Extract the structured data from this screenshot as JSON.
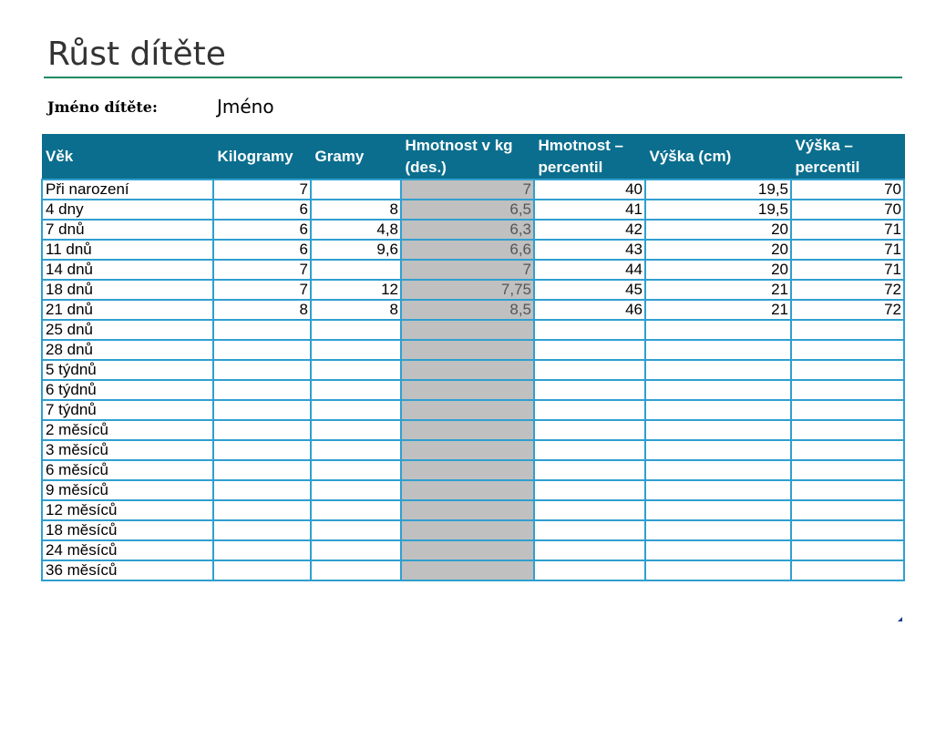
{
  "title": "Růst dítěte",
  "child": {
    "label": "Jméno dítěte:",
    "value": "Jméno"
  },
  "table": {
    "headers": [
      "Věk",
      "Kilogramy",
      "Gramy",
      "Hmotnost v kg (des.)",
      "Hmotnost – percentil",
      "Výška (cm)",
      "Výška – percentil"
    ],
    "rows": [
      [
        "Při narození",
        "7",
        "",
        "7",
        "40",
        "19,5",
        "70"
      ],
      [
        "4 dny",
        "6",
        "8",
        "6,5",
        "41",
        "19,5",
        "70"
      ],
      [
        "7 dnů",
        "6",
        "4,8",
        "6,3",
        "42",
        "20",
        "71"
      ],
      [
        "11 dnů",
        "6",
        "9,6",
        "6,6",
        "43",
        "20",
        "71"
      ],
      [
        "14 dnů",
        "7",
        "",
        "7",
        "44",
        "20",
        "71"
      ],
      [
        "18 dnů",
        "7",
        "12",
        "7,75",
        "45",
        "21",
        "72"
      ],
      [
        "21 dnů",
        "8",
        "8",
        "8,5",
        "46",
        "21",
        "72"
      ],
      [
        "25 dnů",
        "",
        "",
        "",
        "",
        "",
        ""
      ],
      [
        "28 dnů",
        "",
        "",
        "",
        "",
        "",
        ""
      ],
      [
        "5 týdnů",
        "",
        "",
        "",
        "",
        "",
        ""
      ],
      [
        "6 týdnů",
        "",
        "",
        "",
        "",
        "",
        ""
      ],
      [
        "7 týdnů",
        "",
        "",
        "",
        "",
        "",
        ""
      ],
      [
        "2 měsíců",
        "",
        "",
        "",
        "",
        "",
        ""
      ],
      [
        "3 měsíců",
        "",
        "",
        "",
        "",
        "",
        ""
      ],
      [
        "6 měsíců",
        "",
        "",
        "",
        "",
        "",
        ""
      ],
      [
        "9 měsíců",
        "",
        "",
        "",
        "",
        "",
        ""
      ],
      [
        "12 měsíců",
        "",
        "",
        "",
        "",
        "",
        ""
      ],
      [
        "18 měsíců",
        "",
        "",
        "",
        "",
        "",
        ""
      ],
      [
        "24 měsíců",
        "",
        "",
        "",
        "",
        "",
        ""
      ],
      [
        "36 měsíců",
        "",
        "",
        "",
        "",
        "",
        ""
      ]
    ]
  },
  "colors": {
    "header_bg": "#0b6e8e",
    "grid_line": "#2f9fcf",
    "calc_column_bg": "#c0c0c0",
    "title_rule": "#1f8a5e"
  }
}
